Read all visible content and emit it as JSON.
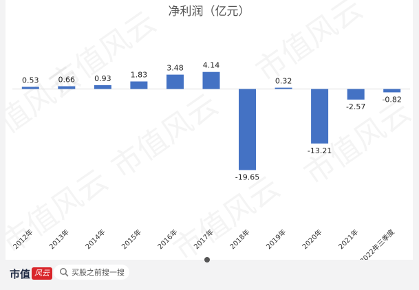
{
  "chart_data": {
    "type": "bar",
    "title": "净利润（亿元）",
    "categories": [
      "2012年",
      "2013年",
      "2014年",
      "2015年",
      "2016年",
      "2017年",
      "2018年",
      "2019年",
      "2020年",
      "2021年",
      "2022年三季度"
    ],
    "values": [
      0.53,
      0.66,
      0.93,
      1.83,
      3.48,
      4.14,
      -19.65,
      0.32,
      -13.21,
      -2.57,
      -0.82
    ],
    "value_labels": [
      "0.53",
      "0.66",
      "0.93",
      "1.83",
      "3.48",
      "4.14",
      "-19.65",
      "0.32",
      "-13.21",
      "-2.57",
      "-0.82"
    ],
    "ylim": [
      -20,
      5
    ],
    "grid": false,
    "bar_color": "#4472c4"
  },
  "watermark": {
    "text": "市值风云"
  },
  "footer": {
    "brand_text": "市值",
    "brand_script": "风云",
    "search_text": "买股之前搜一搜",
    "search_icon": "search-icon"
  }
}
